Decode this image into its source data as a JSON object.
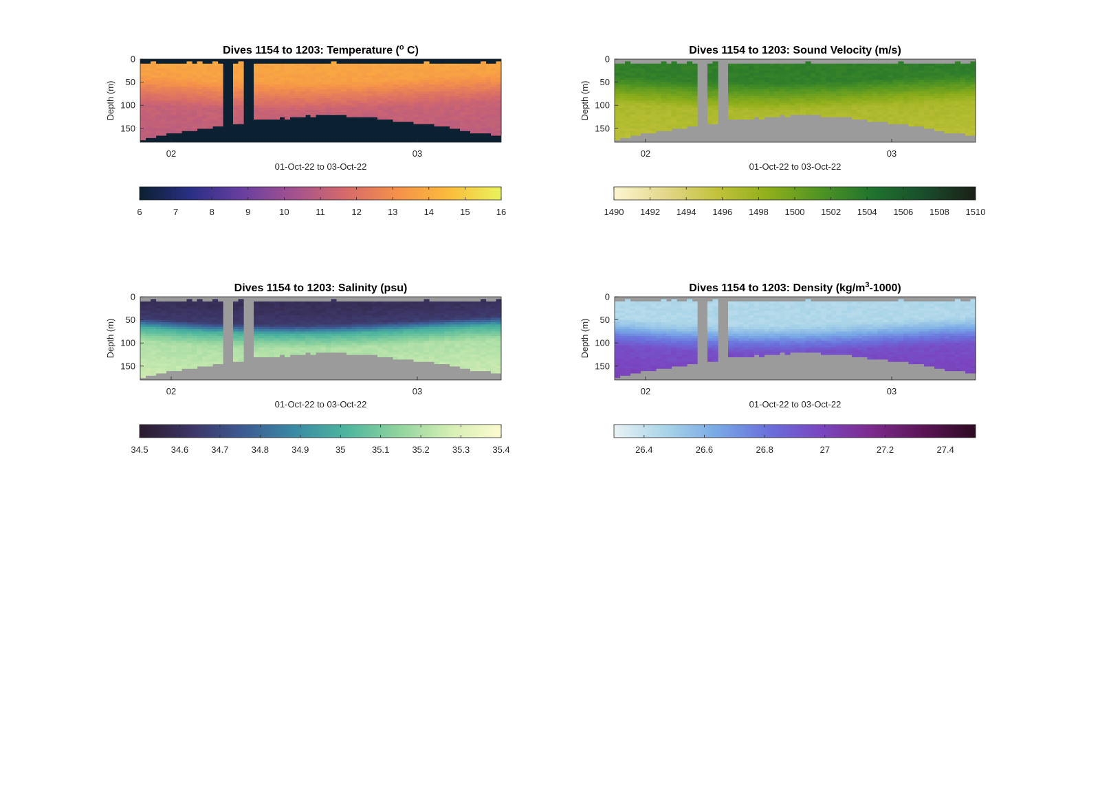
{
  "figure": {
    "panels": [
      {
        "key": "temp",
        "title_main": "Dives 1154 to 1203: Temperature (",
        "title_sup": "o",
        "title_end": " C)",
        "ylabel": "Depth (m)",
        "xlabel": "01-Oct-22 to 03-Oct-22",
        "x_ticks": [
          "02",
          "03"
        ],
        "y_ticks": [
          "0",
          "50",
          "100",
          "150"
        ],
        "colorbar_ticks": [
          "6",
          "7",
          "8",
          "9",
          "10",
          "11",
          "12",
          "13",
          "14",
          "15",
          "16"
        ]
      },
      {
        "key": "sv",
        "title_main": "Dives 1154 to 1203: Sound Velocity (m/s)",
        "title_sup": "",
        "title_end": "",
        "ylabel": "Depth (m)",
        "xlabel": "01-Oct-22 to 03-Oct-22",
        "x_ticks": [
          "02",
          "03"
        ],
        "y_ticks": [
          "0",
          "50",
          "100",
          "150"
        ],
        "colorbar_ticks": [
          "1490",
          "1492",
          "1494",
          "1496",
          "1498",
          "1500",
          "1502",
          "1504",
          "1506",
          "1508",
          "1510"
        ]
      },
      {
        "key": "sal",
        "title_main": "Dives 1154 to 1203: Salinity (psu)",
        "title_sup": "",
        "title_end": "",
        "ylabel": "Depth (m)",
        "xlabel": "01-Oct-22 to 03-Oct-22",
        "x_ticks": [
          "02",
          "03"
        ],
        "y_ticks": [
          "0",
          "50",
          "100",
          "150"
        ],
        "colorbar_ticks": [
          "34.5",
          "34.6",
          "34.7",
          "34.8",
          "34.9",
          "35",
          "35.1",
          "35.2",
          "35.3",
          "35.4"
        ]
      },
      {
        "key": "dens",
        "title_main": "Dives 1154 to 1203: Density (kg/m",
        "title_sup": "3",
        "title_end": "-1000)",
        "ylabel": "Depth (m)",
        "xlabel": "01-Oct-22 to 03-Oct-22",
        "x_ticks": [
          "02",
          "03"
        ],
        "y_ticks": [
          "0",
          "50",
          "100",
          "150"
        ],
        "colorbar_ticks": [
          "26.4",
          "26.6",
          "26.8",
          "27",
          "27.2",
          "27.4"
        ]
      }
    ]
  },
  "chart_data": [
    {
      "type": "heatmap",
      "title": "Dives 1154 to 1203: Temperature (° C)",
      "xlabel": "01-Oct-22 to 03-Oct-22",
      "ylabel": "Depth (m)",
      "ylim": [
        180,
        0
      ],
      "clim": [
        6,
        16
      ],
      "colormap": [
        "#0b2030",
        "#2a2f86",
        "#6a3fa0",
        "#a4528e",
        "#d66a6a",
        "#f5914a",
        "#fbbc3c",
        "#e9f35c"
      ],
      "nodata_color": "#0b2030",
      "profile": {
        "depth": [
          8,
          40,
          60,
          100,
          160
        ],
        "value": [
          13.8,
          13.6,
          12.8,
          11.3,
          11.0
        ]
      }
    },
    {
      "type": "heatmap",
      "title": "Dives 1154 to 1203: Sound Velocity (m/s)",
      "xlabel": "01-Oct-22 to 03-Oct-22",
      "ylabel": "Depth (m)",
      "ylim": [
        180,
        0
      ],
      "clim": [
        1490,
        1510
      ],
      "colormap": [
        "#fcf6d0",
        "#e3d78a",
        "#c2c23a",
        "#8fae1b",
        "#4f9423",
        "#20732e",
        "#194d2b",
        "#1b1f17"
      ],
      "nodata_color": "#9b9b9b",
      "profile": {
        "depth": [
          15,
          40,
          60,
          100,
          170
        ],
        "value": [
          1503.3,
          1503.2,
          1501.0,
          1497.0,
          1496.2
        ]
      }
    },
    {
      "type": "heatmap",
      "title": "Dives 1154 to 1203: Salinity (psu)",
      "xlabel": "01-Oct-22 to 03-Oct-22",
      "ylabel": "Depth (m)",
      "ylim": [
        180,
        0
      ],
      "clim": [
        34.5,
        35.4
      ],
      "colormap": [
        "#2b1b2e",
        "#3c3565",
        "#3d5a93",
        "#3a8aa4",
        "#4db59e",
        "#8fd39e",
        "#d4eeb3",
        "#fdfbd0"
      ],
      "nodata_color": "#9b9b9b",
      "profile": {
        "depth": [
          15,
          50,
          70,
          100,
          170
        ],
        "value": [
          34.6,
          34.65,
          35.0,
          35.2,
          35.25
        ]
      }
    },
    {
      "type": "heatmap",
      "title": "Dives 1154 to 1203: Density (kg/m³-1000)",
      "xlabel": "01-Oct-22 to 03-Oct-22",
      "ylabel": "Depth (m)",
      "ylim": [
        180,
        0
      ],
      "clim": [
        26.3,
        27.5
      ],
      "colormap": [
        "#e8f2f5",
        "#a9d4e8",
        "#78a8e6",
        "#6a6fdc",
        "#7a46c0",
        "#7c2a8c",
        "#5a1455",
        "#2d0a22"
      ],
      "nodata_color": "#9b9b9b",
      "profile": {
        "depth": [
          50,
          65,
          85,
          110,
          170
        ],
        "value": [
          26.45,
          26.55,
          26.75,
          26.95,
          27.0
        ]
      }
    }
  ]
}
